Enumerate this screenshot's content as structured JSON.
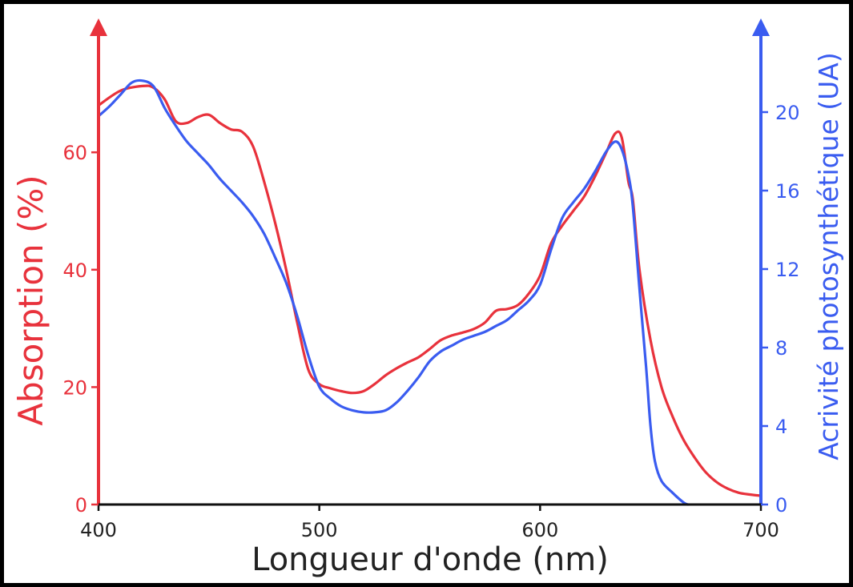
{
  "chart_data": {
    "type": "line",
    "title": "",
    "xlabel": "Longueur d'onde (nm)",
    "ylabel_left": "Absorption (%)",
    "ylabel_right": "Acrivité photosynthétique (UA)",
    "xlim": [
      400,
      700
    ],
    "ylim_left": [
      0,
      80
    ],
    "ylim_right": [
      0,
      24
    ],
    "x_ticks": [
      "400",
      "500",
      "600",
      "700"
    ],
    "y_left_ticks": [
      "0",
      "20",
      "40",
      "60"
    ],
    "y_right_ticks": [
      "0",
      "4",
      "8",
      "12",
      "16",
      "20"
    ],
    "grid": false,
    "colors": {
      "left_axis": "#e8323c",
      "right_axis": "#3a5cf0",
      "text": "#222222"
    },
    "series": [
      {
        "axis": "left",
        "color": "#e8323c",
        "points": [
          [
            400,
            68
          ],
          [
            410,
            70.5
          ],
          [
            420,
            71.3
          ],
          [
            425,
            71
          ],
          [
            430,
            69
          ],
          [
            435,
            65.3
          ],
          [
            440,
            65
          ],
          [
            445,
            66
          ],
          [
            450,
            66.4
          ],
          [
            455,
            65
          ],
          [
            460,
            63.9
          ],
          [
            465,
            63.5
          ],
          [
            470,
            61
          ],
          [
            475,
            55
          ],
          [
            480,
            48
          ],
          [
            485,
            40
          ],
          [
            490,
            31
          ],
          [
            495,
            23
          ],
          [
            500,
            20.5
          ],
          [
            505,
            19.8
          ],
          [
            510,
            19.3
          ],
          [
            515,
            19
          ],
          [
            520,
            19.3
          ],
          [
            525,
            20.5
          ],
          [
            530,
            22
          ],
          [
            535,
            23.2
          ],
          [
            540,
            24.2
          ],
          [
            545,
            25.1
          ],
          [
            550,
            26.5
          ],
          [
            555,
            28
          ],
          [
            560,
            28.8
          ],
          [
            565,
            29.3
          ],
          [
            570,
            29.9
          ],
          [
            575,
            31
          ],
          [
            580,
            33
          ],
          [
            585,
            33.3
          ],
          [
            590,
            34
          ],
          [
            595,
            36
          ],
          [
            600,
            39
          ],
          [
            605,
            44.5
          ],
          [
            610,
            47.5
          ],
          [
            615,
            50
          ],
          [
            620,
            52.5
          ],
          [
            625,
            56
          ],
          [
            630,
            60
          ],
          [
            634,
            63.2
          ],
          [
            637,
            62.5
          ],
          [
            640,
            55
          ],
          [
            642,
            52
          ],
          [
            645,
            40
          ],
          [
            650,
            28
          ],
          [
            655,
            20
          ],
          [
            660,
            15
          ],
          [
            665,
            11
          ],
          [
            670,
            8
          ],
          [
            675,
            5.5
          ],
          [
            680,
            3.8
          ],
          [
            685,
            2.7
          ],
          [
            690,
            2
          ],
          [
            695,
            1.7
          ],
          [
            700,
            1.5
          ]
        ]
      },
      {
        "axis": "right",
        "color": "#3a5cf0",
        "points": [
          [
            400,
            19.8
          ],
          [
            405,
            20.3
          ],
          [
            410,
            20.9
          ],
          [
            415,
            21.5
          ],
          [
            420,
            21.6
          ],
          [
            425,
            21.3
          ],
          [
            430,
            20.2
          ],
          [
            435,
            19.3
          ],
          [
            440,
            18.5
          ],
          [
            445,
            17.9
          ],
          [
            450,
            17.3
          ],
          [
            455,
            16.6
          ],
          [
            460,
            16
          ],
          [
            465,
            15.4
          ],
          [
            470,
            14.7
          ],
          [
            475,
            13.8
          ],
          [
            480,
            12.6
          ],
          [
            485,
            11.3
          ],
          [
            490,
            9.6
          ],
          [
            495,
            7.6
          ],
          [
            500,
            6
          ],
          [
            505,
            5.4
          ],
          [
            510,
            5
          ],
          [
            515,
            4.8
          ],
          [
            520,
            4.7
          ],
          [
            525,
            4.7
          ],
          [
            530,
            4.8
          ],
          [
            535,
            5.2
          ],
          [
            540,
            5.8
          ],
          [
            545,
            6.5
          ],
          [
            550,
            7.3
          ],
          [
            555,
            7.8
          ],
          [
            560,
            8.1
          ],
          [
            565,
            8.4
          ],
          [
            570,
            8.6
          ],
          [
            575,
            8.8
          ],
          [
            580,
            9.1
          ],
          [
            585,
            9.4
          ],
          [
            590,
            9.9
          ],
          [
            595,
            10.4
          ],
          [
            600,
            11.2
          ],
          [
            605,
            13
          ],
          [
            610,
            14.6
          ],
          [
            615,
            15.4
          ],
          [
            620,
            16.1
          ],
          [
            625,
            17
          ],
          [
            630,
            18
          ],
          [
            634,
            18.5
          ],
          [
            637,
            18.1
          ],
          [
            640,
            16.8
          ],
          [
            642,
            15.2
          ],
          [
            645,
            11
          ],
          [
            648,
            7
          ],
          [
            650,
            4
          ],
          [
            652,
            2.2
          ],
          [
            655,
            1.2
          ],
          [
            660,
            0.6
          ],
          [
            665,
            0.1
          ],
          [
            667,
            0
          ]
        ]
      }
    ]
  }
}
